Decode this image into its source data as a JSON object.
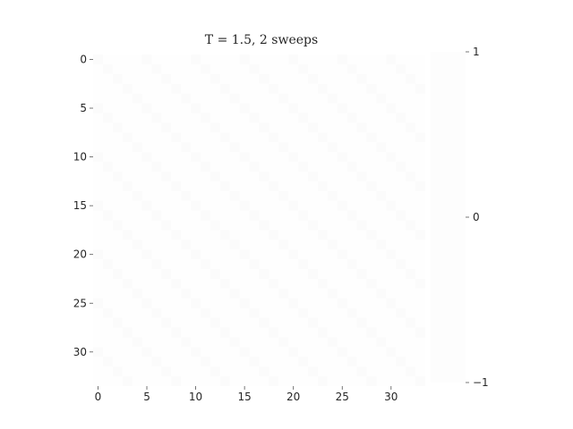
{
  "chart_data": {
    "type": "heatmap",
    "title": "T = 1.5, 2 sweeps",
    "xlabel": "",
    "ylabel": "",
    "grid": false,
    "xlim": [
      -0.5,
      33.5
    ],
    "ylim": [
      33.5,
      -0.5
    ],
    "x_ticks": [
      0,
      5,
      10,
      15,
      20,
      25,
      30
    ],
    "y_ticks": [
      0,
      5,
      10,
      15,
      20,
      25,
      30
    ],
    "x_tick_labels": [
      "0",
      "5",
      "10",
      "15",
      "20",
      "25",
      "30"
    ],
    "y_tick_labels": [
      "0",
      "5",
      "10",
      "15",
      "20",
      "25",
      "30"
    ],
    "colorbar": {
      "min": -1,
      "max": 1,
      "ticks": [
        1,
        0,
        -1
      ],
      "tick_labels": [
        "1",
        "0",
        "−1"
      ],
      "colormap": "nearly-white"
    },
    "grid_size": [
      34,
      34
    ],
    "cell_values": "spin lattice of +1 / −1 values rendered in a near-white colormap; individual cells are not legible"
  }
}
